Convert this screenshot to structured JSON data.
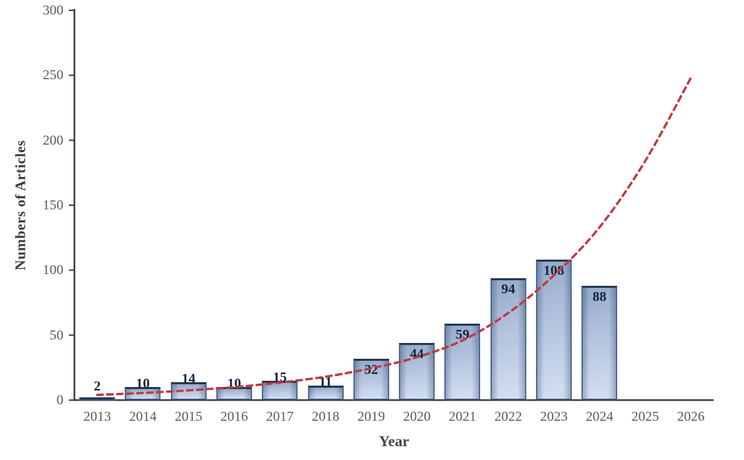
{
  "chart_data": {
    "type": "bar",
    "title": "",
    "xlabel": "Year",
    "ylabel": "Numbers of Articles",
    "categories": [
      "2013",
      "2014",
      "2015",
      "2016",
      "2017",
      "2018",
      "2019",
      "2020",
      "2021",
      "2022",
      "2023",
      "2024",
      "2025",
      "2026"
    ],
    "values": [
      2,
      10,
      14,
      10,
      15,
      11,
      32,
      44,
      59,
      94,
      108,
      88,
      null,
      null
    ],
    "bar_labels": [
      "2",
      "10",
      "14",
      "10",
      "15",
      "11",
      "32",
      "44",
      "59",
      "94",
      "108",
      "88"
    ],
    "ylim": [
      0,
      300
    ],
    "yticks": [
      0,
      50,
      100,
      150,
      200,
      250,
      300
    ],
    "grid": false,
    "legend_position": "none",
    "trend": {
      "name": "exponential-trend-line",
      "style": "dashed",
      "color": "#bf3a40",
      "values": [
        4,
        5.5,
        7.5,
        10,
        13.5,
        18,
        24.5,
        33,
        46,
        67,
        96,
        133,
        184,
        248
      ]
    },
    "colors": {
      "axis": "#3c3c3c",
      "tick_label": "#5a5a5a",
      "data_label": "#16223c",
      "bar_border": "#54699a",
      "bar_cap": "#273850",
      "bar_fill_top": "#8ea5c6",
      "bar_fill_bottom": "#cfdbf0"
    }
  }
}
